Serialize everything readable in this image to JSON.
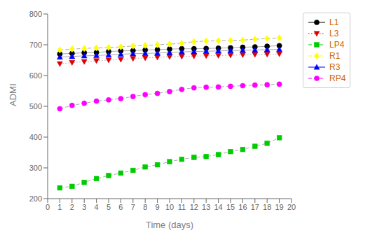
{
  "chart_data": {
    "type": "line",
    "xlabel": "Time (days)",
    "ylabel": "ADMI",
    "x": [
      1,
      2,
      3,
      4,
      5,
      6,
      7,
      8,
      9,
      10,
      11,
      12,
      13,
      14,
      15,
      16,
      17,
      18,
      19
    ],
    "series": [
      {
        "name": "L1",
        "color": "#000000",
        "marker": "circle",
        "line_style": "solid",
        "values": [
          670,
          672,
          674,
          675,
          678,
          680,
          681,
          683,
          684,
          686,
          687,
          687,
          688,
          689,
          690,
          692,
          693,
          695,
          697
        ]
      },
      {
        "name": "L3",
        "color": "#dd0000",
        "marker": "triangle_down",
        "line_style": "dotted",
        "values": [
          638,
          642,
          645,
          648,
          650,
          652,
          655,
          657,
          659,
          661,
          662,
          663,
          664,
          665,
          666,
          667,
          668,
          669,
          670
        ]
      },
      {
        "name": "LP4",
        "color": "#00cc00",
        "marker": "square",
        "line_style": "dashed",
        "values": [
          235,
          240,
          253,
          265,
          275,
          283,
          292,
          303,
          310,
          320,
          328,
          334,
          337,
          343,
          353,
          360,
          370,
          380,
          398
        ]
      },
      {
        "name": "R1",
        "color": "#ffff00",
        "marker": "diamond",
        "line_style": "dashed",
        "values": [
          683,
          686,
          688,
          690,
          691,
          693,
          696,
          698,
          700,
          702,
          705,
          710,
          712,
          713,
          714,
          715,
          718,
          720,
          722
        ]
      },
      {
        "name": "R3",
        "color": "#0000ff",
        "marker": "triangle_up",
        "line_style": "solid",
        "values": [
          660,
          662,
          664,
          665,
          667,
          669,
          671,
          672,
          673,
          675,
          677,
          678,
          679,
          680,
          681,
          682,
          683,
          684,
          685
        ]
      },
      {
        "name": "RP4",
        "color": "#ff00ff",
        "marker": "circle",
        "line_style": "dashed",
        "values": [
          492,
          503,
          510,
          517,
          521,
          525,
          532,
          538,
          542,
          548,
          555,
          560,
          562,
          563,
          565,
          567,
          569,
          570,
          572
        ]
      }
    ],
    "xlim": [
      0,
      20
    ],
    "ylim": [
      200,
      800
    ],
    "xticks": [
      0,
      1,
      2,
      3,
      4,
      5,
      6,
      7,
      8,
      9,
      10,
      11,
      12,
      13,
      14,
      15,
      16,
      17,
      18,
      19,
      20
    ],
    "yticks": [
      200,
      300,
      400,
      500,
      600,
      700,
      800
    ],
    "grid": false,
    "legend": "upper right"
  }
}
